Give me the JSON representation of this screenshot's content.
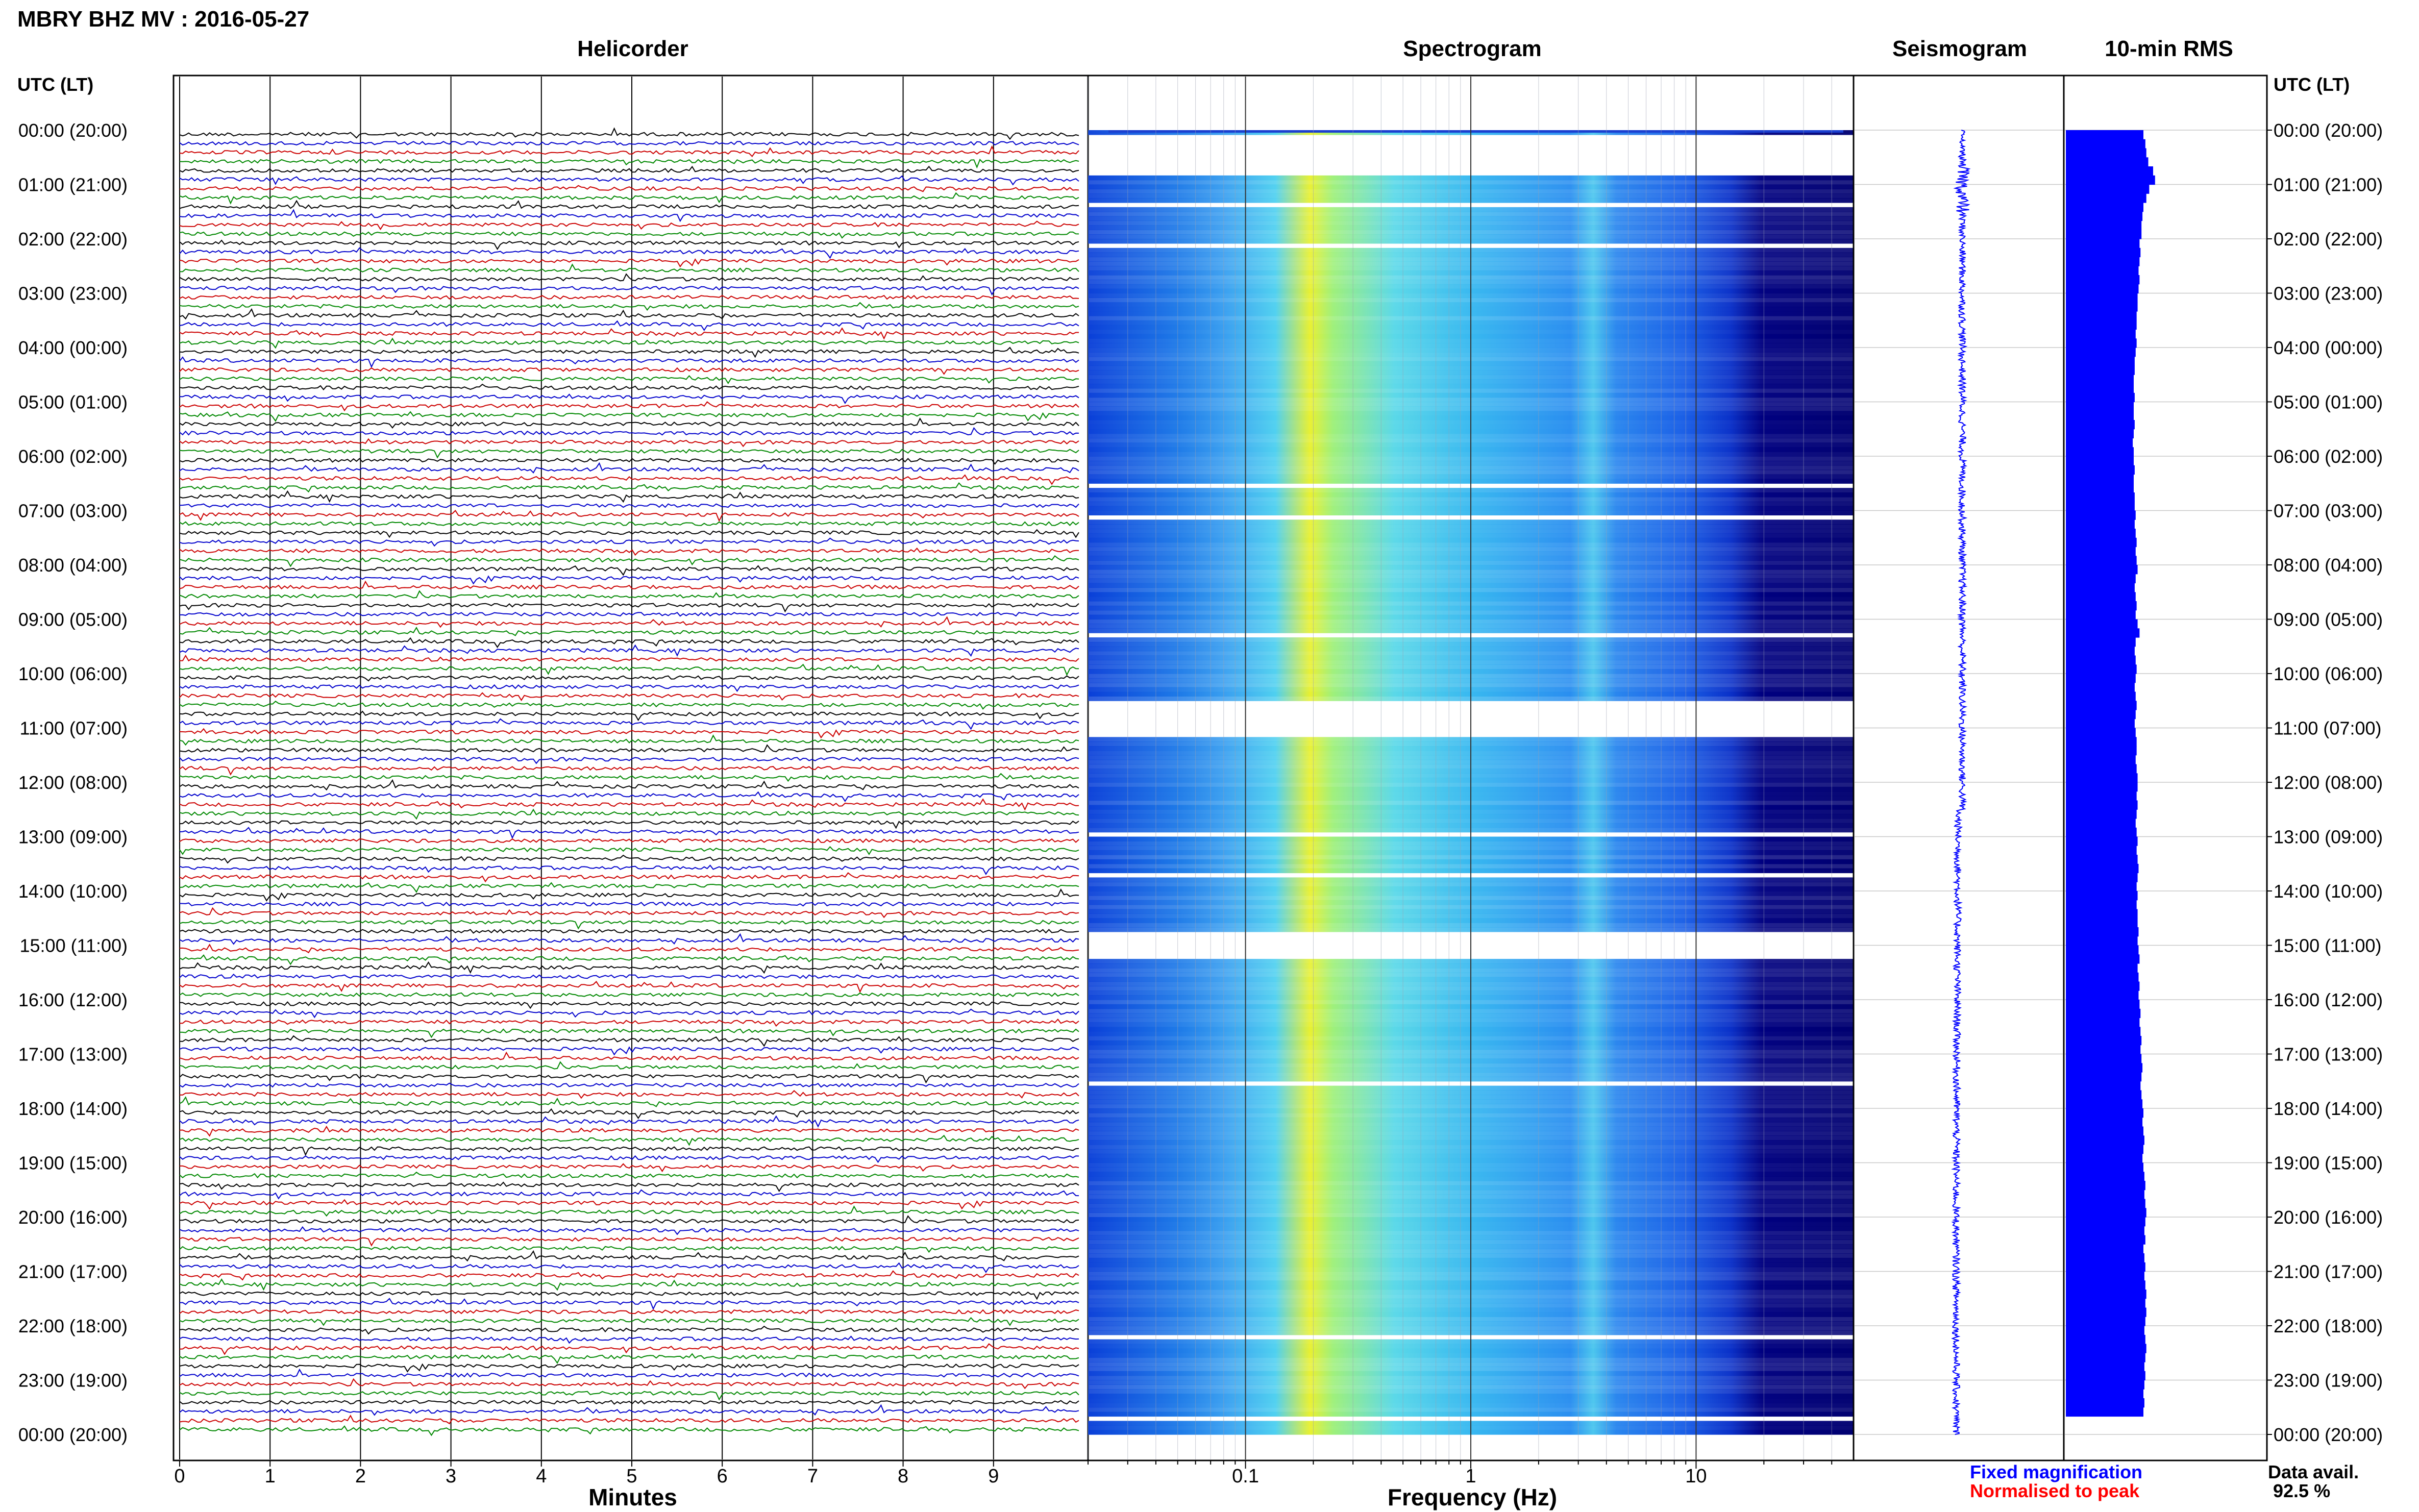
{
  "header": {
    "title": "MBRY BHZ MV : 2016-05-27"
  },
  "panels": {
    "helicorder": "Helicorder",
    "spectrogram": "Spectrogram",
    "seismogram": "Seismogram",
    "rms": "10-min RMS"
  },
  "time_axis": {
    "label": "UTC (LT)",
    "ticks": [
      "00:00 (20:00)",
      "01:00 (21:00)",
      "02:00 (22:00)",
      "03:00 (23:00)",
      "04:00 (00:00)",
      "05:00 (01:00)",
      "06:00 (02:00)",
      "07:00 (03:00)",
      "08:00 (04:00)",
      "09:00 (05:00)",
      "10:00 (06:00)",
      "11:00 (07:00)",
      "12:00 (08:00)",
      "13:00 (09:00)",
      "14:00 (10:00)",
      "15:00 (11:00)",
      "16:00 (12:00)",
      "17:00 (13:00)",
      "18:00 (14:00)",
      "19:00 (15:00)",
      "20:00 (16:00)",
      "21:00 (17:00)",
      "22:00 (18:00)",
      "23:00 (19:00)",
      "00:00 (20:00)"
    ]
  },
  "legend": {
    "fixed": "Fixed magnification",
    "normalised": "Normalised to peak",
    "fixed_color": "#0000ff",
    "normalised_color": "#ff0000",
    "data_avail_label": "Data avail.",
    "data_avail_value": "92.5 %"
  },
  "chart_data": [
    {
      "type": "line",
      "title": "Helicorder",
      "xlabel": "Minutes",
      "ylabel": "UTC (LT)",
      "x_ticks": [
        "0",
        "1",
        "2",
        "3",
        "4",
        "5",
        "6",
        "7",
        "8",
        "9"
      ],
      "xlim": [
        0,
        10
      ],
      "lines_per_hour": 6,
      "trace_colors": [
        "#000000",
        "#0000cc",
        "#cc0000",
        "#008800"
      ],
      "grid": true
    },
    {
      "type": "heatmap",
      "title": "Spectrogram",
      "xlabel": "Frequency (Hz)",
      "x_ticks": [
        "0.1",
        "1",
        "10"
      ],
      "xlim": [
        0.02,
        50
      ],
      "x_scale": "log",
      "colormap": [
        "#000080",
        "#0000ff",
        "#0080ff",
        "#00e0ff",
        "#80ff80",
        "#ffff00"
      ],
      "gap_hours": [
        [
          0.05,
          0.8
        ],
        [
          10.55,
          11.1
        ],
        [
          14.75,
          15.2
        ]
      ]
    },
    {
      "type": "line",
      "title": "Seismogram",
      "color": "#0000ff"
    },
    {
      "type": "bar",
      "title": "10-min RMS",
      "color": "#0000ff",
      "interval_min": 10,
      "note": "relative RMS per 10-minute window, 00:00-24:00 UTC",
      "values": [
        0.8,
        0.82,
        0.83,
        0.85,
        0.9,
        0.92,
        0.86,
        0.83,
        0.8,
        0.79,
        0.78,
        0.78,
        0.76,
        0.77,
        0.76,
        0.75,
        0.76,
        0.75,
        0.74,
        0.74,
        0.73,
        0.73,
        0.72,
        0.73,
        0.72,
        0.71,
        0.71,
        0.7,
        0.7,
        0.71,
        0.7,
        0.7,
        0.71,
        0.7,
        0.69,
        0.7,
        0.7,
        0.71,
        0.7,
        0.7,
        0.71,
        0.71,
        0.72,
        0.71,
        0.72,
        0.73,
        0.72,
        0.73,
        0.74,
        0.72,
        0.71,
        0.72,
        0.73,
        0.72,
        0.74,
        0.76,
        0.72,
        0.71,
        0.72,
        0.73,
        0.72,
        0.71,
        0.72,
        0.73,
        0.72,
        0.71,
        0.72,
        0.73,
        0.73,
        0.72,
        0.73,
        0.74,
        0.74,
        0.73,
        0.74,
        0.73,
        0.72,
        0.73,
        0.74,
        0.73,
        0.74,
        0.75,
        0.74,
        0.73,
        0.74,
        0.73,
        0.74,
        0.74,
        0.75,
        0.74,
        0.75,
        0.76,
        0.74,
        0.75,
        0.76,
        0.75,
        0.76,
        0.77,
        0.76,
        0.77,
        0.78,
        0.77,
        0.78,
        0.79,
        0.78,
        0.77,
        0.78,
        0.79,
        0.8,
        0.79,
        0.8,
        0.81,
        0.8,
        0.79,
        0.8,
        0.81,
        0.82,
        0.81,
        0.82,
        0.83,
        0.82,
        0.81,
        0.82,
        0.8,
        0.81,
        0.82,
        0.81,
        0.82,
        0.83,
        0.82,
        0.83,
        0.82,
        0.81,
        0.82,
        0.83,
        0.82,
        0.81,
        0.82,
        0.81,
        0.8,
        0.81,
        0.8
      ]
    }
  ]
}
